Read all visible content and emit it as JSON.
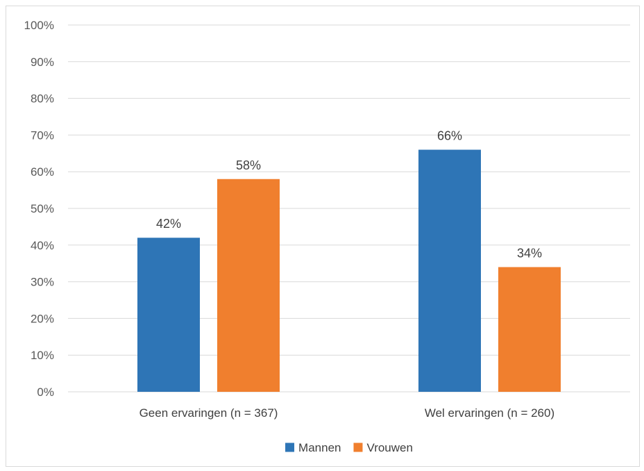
{
  "chart_data": {
    "type": "bar",
    "categories": [
      "Geen ervaringen (n = 367)",
      "Wel ervaringen (n = 260)"
    ],
    "series": [
      {
        "name": "Mannen",
        "values": [
          42,
          66
        ],
        "labels": [
          "42%",
          "66%"
        ],
        "color": "#2e75b6"
      },
      {
        "name": "Vrouwen",
        "values": [
          58,
          34
        ],
        "labels": [
          "58%",
          "34%"
        ],
        "color": "#f07f2e"
      }
    ],
    "ylim": [
      0,
      100
    ],
    "yticks": [
      0,
      10,
      20,
      30,
      40,
      50,
      60,
      70,
      80,
      90,
      100
    ],
    "ytick_labels": [
      "0%",
      "10%",
      "20%",
      "30%",
      "40%",
      "50%",
      "60%",
      "70%",
      "80%",
      "90%",
      "100%"
    ],
    "grid": true,
    "legend_position": "bottom"
  }
}
